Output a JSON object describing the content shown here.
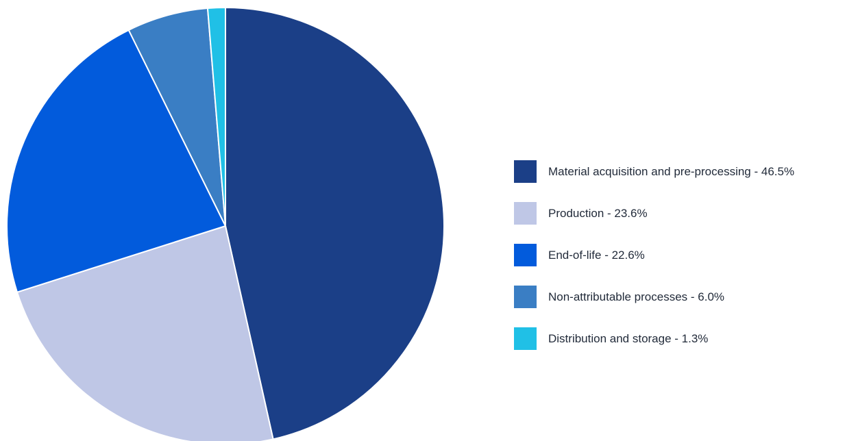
{
  "chart_data": {
    "type": "pie",
    "categories": [
      "Material acquisition and pre-processing",
      "Production",
      "End-of-life",
      "Non-attributable processes",
      "Distribution and storage"
    ],
    "values": [
      46.5,
      23.6,
      22.6,
      6.0,
      1.3
    ],
    "unit": "%",
    "colors": [
      "#1b3f87",
      "#bfc7e6",
      "#025bdc",
      "#3a7ec4",
      "#20c0e6"
    ],
    "legend_labels": [
      "Material acquisition and pre-processing - 46.5%",
      "Production - 23.6%",
      "End-of-life - 22.6%",
      "Non-attributable processes - 6.0%",
      "Distribution and storage - 1.3%"
    ],
    "start_angle_deg": 0,
    "direction": "clockwise",
    "legend_placement": "right"
  }
}
